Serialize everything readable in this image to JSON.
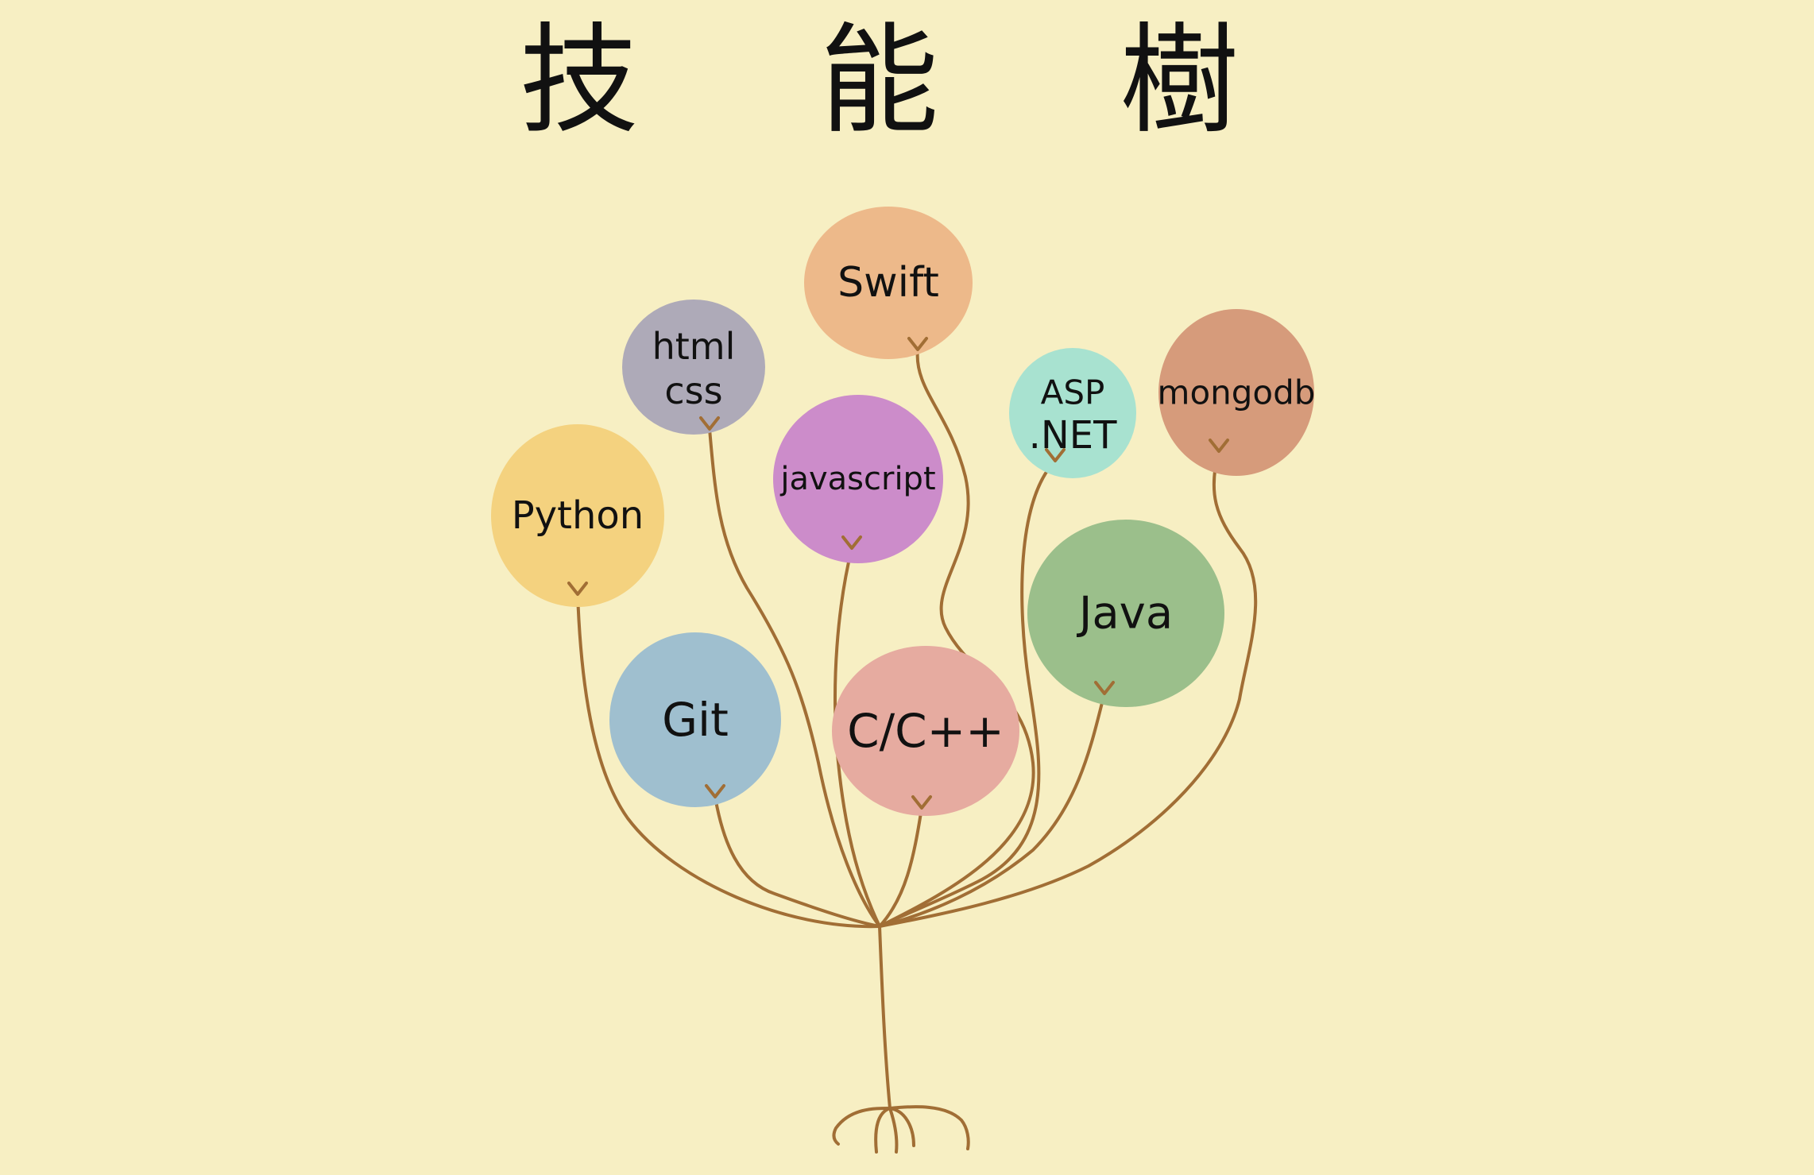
{
  "title": "技 能 樹",
  "balloons": [
    {
      "id": "swift",
      "lines": [
        "Swift"
      ],
      "color": "#edb98a"
    },
    {
      "id": "html-css",
      "lines": [
        "html",
        "css"
      ],
      "color": "#aeaab8"
    },
    {
      "id": "javascript",
      "lines": [
        "javascript"
      ],
      "color": "#cc8cca"
    },
    {
      "id": "python",
      "lines": [
        "Python"
      ],
      "color": "#f4d27f"
    },
    {
      "id": "asp-net",
      "lines": [
        "ASP",
        ".NET"
      ],
      "color": "#a8e2d0"
    },
    {
      "id": "mongodb",
      "lines": [
        "mongodb"
      ],
      "color": "#d69b7b"
    },
    {
      "id": "java",
      "lines": [
        "Java"
      ],
      "color": "#9bbf8b"
    },
    {
      "id": "git",
      "lines": [
        "Git"
      ],
      "color": "#9fbfcf"
    },
    {
      "id": "c-cpp",
      "lines": [
        "C/C++"
      ],
      "color": "#e6aba0"
    }
  ],
  "colors": {
    "background": "#f7efc3",
    "stem": "#a16e35",
    "ink": "#111111"
  }
}
